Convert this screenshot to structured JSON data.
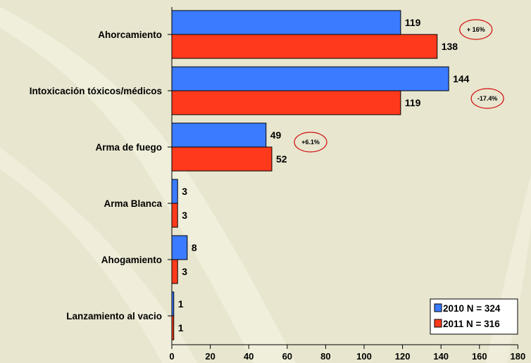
{
  "chart_data": {
    "type": "bar",
    "orientation": "horizontal",
    "categories": [
      "Ahorcamiento",
      "Intoxicación tóxicos/médicos",
      "Arma de fuego",
      "Arma Blanca",
      "Ahogamiento",
      "Lanzamiento al vacio"
    ],
    "series": [
      {
        "name": "2010 N = 324",
        "values": [
          119,
          144,
          49,
          3,
          8,
          1
        ],
        "color": "#3b7bff"
      },
      {
        "name": "2011 N = 316",
        "values": [
          138,
          119,
          52,
          3,
          3,
          1
        ],
        "color": "#ff3a1c"
      }
    ],
    "xlim": [
      0,
      180
    ],
    "xticks": [
      0,
      20,
      40,
      60,
      80,
      100,
      120,
      140,
      160,
      180
    ],
    "annotations": [
      {
        "category_index": 0,
        "text": "+ 16%"
      },
      {
        "category_index": 1,
        "text": "-17.4%"
      },
      {
        "category_index": 2,
        "text": "+6.1%"
      }
    ],
    "legend_position": "bottom-right",
    "grid": false,
    "background_color": "#e8e6cf",
    "annotation_color": "#d01010"
  }
}
